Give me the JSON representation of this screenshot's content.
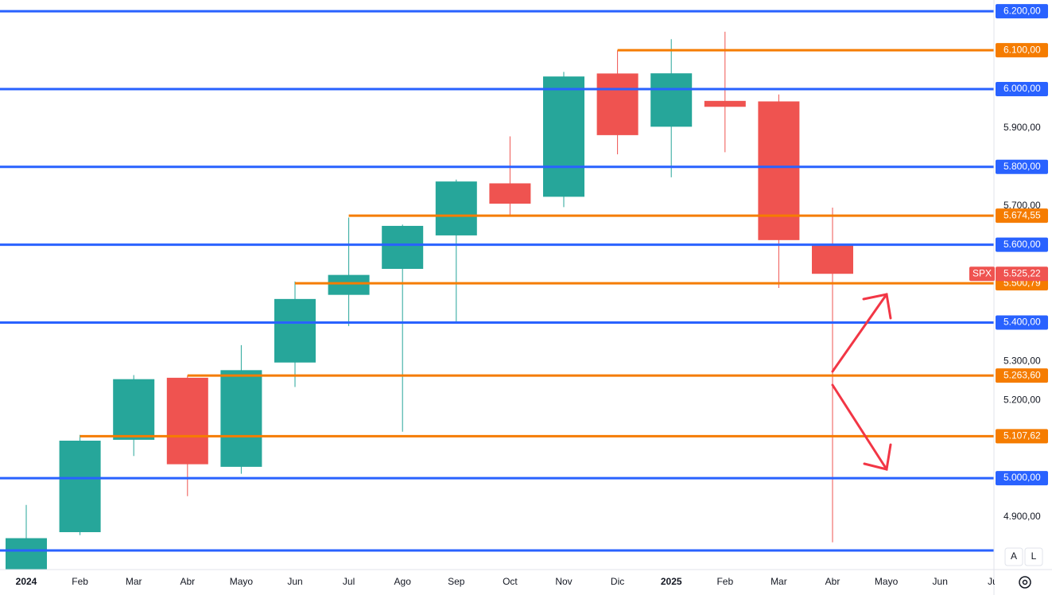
{
  "chart_data": {
    "type": "candlestick",
    "categories": [
      "2024",
      "Feb",
      "Mar",
      "Abr",
      "Mayo",
      "Jun",
      "Jul",
      "Ago",
      "Sep",
      "Oct",
      "Nov",
      "Dic",
      "2025",
      "Feb",
      "Mar",
      "Abr",
      "Mayo",
      "Jun",
      "Jul"
    ],
    "open": [
      4745.1,
      4861.11,
      5098.51,
      5257.97,
      5029.03,
      5297.15,
      5471.08,
      5537.84,
      5623.89,
      5757.73,
      5723.22,
      6040.11,
      5903.26,
      5969.65,
      5968.33,
      5597.53,
      null,
      null,
      null
    ],
    "high": [
      4931.09,
      5111.06,
      5264.85,
      5263.95,
      5341.88,
      5505.53,
      5669.67,
      5651.62,
      5767.37,
      5878.46,
      6044.17,
      6099.97,
      6128.18,
      6147.43,
      5986.09,
      5695.31,
      null,
      null,
      null
    ],
    "low": [
      4682.11,
      4853.52,
      5056.82,
      4953.56,
      5011.05,
      5234.32,
      5390.95,
      5119.26,
      5402.62,
      5674.0,
      5696.51,
      5832.3,
      5773.31,
      5837.66,
      5488.73,
      4835.04,
      null,
      null,
      null
    ],
    "close": [
      4845.65,
      5096.27,
      5254.35,
      5035.69,
      5277.51,
      5460.48,
      5522.3,
      5648.4,
      5762.48,
      5705.45,
      6032.38,
      5881.63,
      6040.53,
      5954.5,
      5611.85,
      5525.22,
      null,
      null,
      null
    ],
    "up_color": "#26a69a",
    "down_color": "#ef5350",
    "ylim": [
      4765,
      6229
    ],
    "yticks": [
      {
        "value": 4900,
        "label": "4.900,00"
      },
      {
        "value": 5200,
        "label": "5.200,00"
      },
      {
        "value": 5300,
        "label": "5.300,00"
      },
      {
        "value": 5700,
        "label": "5.700,00"
      },
      {
        "value": 5900,
        "label": "5.900,00"
      }
    ],
    "lines": [
      {
        "value": 6200,
        "label": "6.200,00",
        "color": "#2962ff",
        "anchor": "full"
      },
      {
        "value": 6000,
        "label": "6.000,00",
        "color": "#2962ff",
        "anchor": "full"
      },
      {
        "value": 5800,
        "label": "5.800,00",
        "color": "#2962ff",
        "anchor": "full"
      },
      {
        "value": 5600,
        "label": "5.600,00",
        "color": "#2962ff",
        "anchor": "full"
      },
      {
        "value": 5400,
        "label": "5.400,00",
        "color": "#2962ff",
        "anchor": "full"
      },
      {
        "value": 5000,
        "label": "5.000,00",
        "color": "#2962ff",
        "anchor": "full"
      },
      {
        "value": 4814,
        "color": "#2962ff",
        "anchor": "full"
      },
      {
        "value": 6100,
        "label": "6.100,00",
        "color": "#f57c00",
        "anchor": "high"
      },
      {
        "value": 5674.55,
        "label": "5.674,55",
        "color": "#f57c00",
        "anchor": "high"
      },
      {
        "value": 5500.79,
        "label": "5.500,79",
        "color": "#f57c00",
        "anchor": "high"
      },
      {
        "value": 5263.6,
        "label": "5.263,60",
        "color": "#f57c00",
        "anchor": "high"
      },
      {
        "value": 5107.62,
        "label": "5.107,62",
        "color": "#f57c00",
        "anchor": "high"
      }
    ],
    "current": {
      "name": "SPX",
      "value": 5525.22,
      "label": "5.525,22",
      "color": "#ef5350"
    }
  },
  "controls": [
    "A",
    "L"
  ]
}
